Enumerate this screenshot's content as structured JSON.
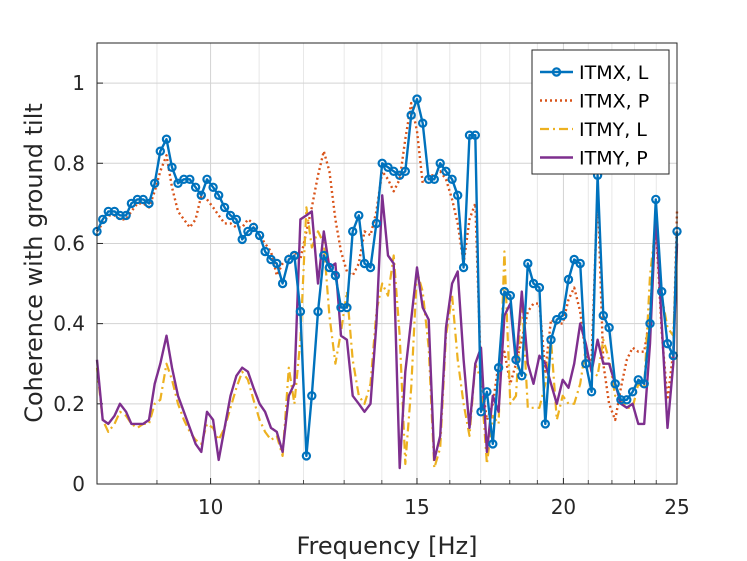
{
  "chart_data": {
    "type": "line",
    "xlabel": "Frequency [Hz]",
    "ylabel": "Coherence with ground tilt",
    "xlim": [
      8,
      25
    ],
    "ylim": [
      0,
      1.1
    ],
    "xscale": "log",
    "grid": true,
    "legend_position": "top-right",
    "xticks": [
      10,
      15,
      20,
      25
    ],
    "xtick_labels": [
      "10",
      "15",
      "20",
      "25"
    ],
    "yticks": [
      0,
      0.2,
      0.4,
      0.6,
      0.8,
      1.0
    ],
    "ytick_labels": [
      "0",
      "0.2",
      "0.4",
      "0.6",
      "0.8",
      "1"
    ],
    "series": [
      {
        "name": "ITMX, L",
        "color": "#0072BD",
        "style": "solid-circles",
        "x": [
          8.0,
          8.09,
          8.18,
          8.28,
          8.37,
          8.47,
          8.56,
          8.66,
          8.76,
          8.86,
          8.96,
          9.06,
          9.17,
          9.27,
          9.38,
          9.49,
          9.6,
          9.71,
          9.82,
          9.93,
          10.05,
          10.16,
          10.28,
          10.4,
          10.52,
          10.64,
          10.76,
          10.88,
          11.01,
          11.13,
          11.26,
          11.39,
          11.52,
          11.66,
          11.79,
          11.93,
          12.07,
          12.2,
          12.35,
          12.49,
          12.63,
          12.78,
          12.92,
          13.07,
          13.22,
          13.38,
          13.53,
          13.69,
          13.85,
          14.01,
          14.17,
          14.33,
          14.5,
          14.66,
          14.83,
          15.0,
          15.17,
          15.35,
          15.52,
          15.7,
          15.88,
          16.07,
          16.25,
          16.44,
          16.63,
          16.82,
          17.01,
          17.21,
          17.41,
          17.61,
          17.81,
          18.02,
          18.22,
          18.43,
          18.65,
          18.86,
          19.08,
          19.3,
          19.52,
          19.74,
          19.97,
          20.2,
          20.43,
          20.67,
          20.9,
          21.14,
          21.39,
          21.63,
          21.88,
          22.14,
          22.39,
          22.65,
          22.91,
          23.17,
          23.44,
          23.71,
          23.98,
          24.26,
          24.54,
          24.82,
          25.0
        ],
        "y": [
          0.63,
          0.66,
          0.68,
          0.68,
          0.67,
          0.67,
          0.7,
          0.71,
          0.71,
          0.7,
          0.75,
          0.83,
          0.86,
          0.79,
          0.75,
          0.76,
          0.76,
          0.74,
          0.72,
          0.76,
          0.74,
          0.72,
          0.69,
          0.67,
          0.66,
          0.61,
          0.63,
          0.64,
          0.62,
          0.58,
          0.56,
          0.55,
          0.5,
          0.56,
          0.57,
          0.43,
          0.07,
          0.22,
          0.43,
          0.57,
          0.54,
          0.52,
          0.44,
          0.44,
          0.63,
          0.67,
          0.55,
          0.54,
          0.65,
          0.8,
          0.79,
          0.78,
          0.77,
          0.78,
          0.92,
          0.96,
          0.9,
          0.76,
          0.76,
          0.8,
          0.78,
          0.76,
          0.72,
          0.54,
          0.87,
          0.87,
          0.18,
          0.23,
          0.1,
          0.29,
          0.48,
          0.47,
          0.31,
          0.27,
          0.55,
          0.5,
          0.49,
          0.15,
          0.36,
          0.41,
          0.42,
          0.51,
          0.56,
          0.55,
          0.3,
          0.23,
          0.77,
          0.42,
          0.39,
          0.25,
          0.21,
          0.21,
          0.23,
          0.26,
          0.25,
          0.4,
          0.71,
          0.48,
          0.35,
          0.32,
          0.63
        ]
      },
      {
        "name": "ITMX, P",
        "color": "#D95319",
        "style": "dotted",
        "x": [
          8.0,
          8.09,
          8.18,
          8.28,
          8.37,
          8.47,
          8.56,
          8.66,
          8.76,
          8.86,
          8.96,
          9.06,
          9.17,
          9.27,
          9.38,
          9.49,
          9.6,
          9.71,
          9.82,
          9.93,
          10.05,
          10.16,
          10.28,
          10.4,
          10.52,
          10.64,
          10.76,
          10.88,
          11.01,
          11.13,
          11.26,
          11.39,
          11.52,
          11.66,
          11.79,
          11.93,
          12.07,
          12.2,
          12.35,
          12.49,
          12.63,
          12.78,
          12.92,
          13.07,
          13.22,
          13.38,
          13.53,
          13.69,
          13.85,
          14.01,
          14.17,
          14.33,
          14.5,
          14.66,
          14.83,
          15.0,
          15.17,
          15.35,
          15.52,
          15.7,
          15.88,
          16.07,
          16.25,
          16.44,
          16.63,
          16.82,
          17.01,
          17.21,
          17.41,
          17.61,
          17.81,
          18.02,
          18.22,
          18.43,
          18.65,
          18.86,
          19.08,
          19.3,
          19.52,
          19.74,
          19.97,
          20.2,
          20.43,
          20.67,
          20.9,
          21.14,
          21.39,
          21.63,
          21.88,
          22.14,
          22.39,
          22.65,
          22.91,
          23.17,
          23.44,
          23.71,
          23.98,
          24.26,
          24.54,
          24.82,
          25.0
        ],
        "y": [
          0.63,
          0.65,
          0.67,
          0.67,
          0.66,
          0.66,
          0.68,
          0.7,
          0.7,
          0.69,
          0.73,
          0.78,
          0.82,
          0.74,
          0.68,
          0.66,
          0.64,
          0.66,
          0.72,
          0.71,
          0.69,
          0.67,
          0.65,
          0.65,
          0.64,
          0.64,
          0.66,
          0.65,
          0.62,
          0.6,
          0.58,
          0.52,
          0.55,
          0.57,
          0.58,
          0.56,
          0.63,
          0.69,
          0.77,
          0.83,
          0.78,
          0.66,
          0.58,
          0.53,
          0.52,
          0.55,
          0.63,
          0.62,
          0.68,
          0.78,
          0.76,
          0.73,
          0.76,
          0.86,
          0.95,
          0.88,
          0.75,
          0.77,
          0.77,
          0.78,
          0.76,
          0.71,
          0.65,
          0.55,
          0.66,
          0.7,
          0.27,
          0.16,
          0.2,
          0.3,
          0.33,
          0.25,
          0.3,
          0.36,
          0.43,
          0.45,
          0.45,
          0.28,
          0.41,
          0.4,
          0.4,
          0.46,
          0.49,
          0.43,
          0.32,
          0.31,
          0.73,
          0.3,
          0.2,
          0.16,
          0.24,
          0.31,
          0.34,
          0.33,
          0.33,
          0.42,
          0.65,
          0.38,
          0.21,
          0.33,
          0.68
        ]
      },
      {
        "name": "ITMY, L",
        "color": "#EDB120",
        "style": "dash-dot",
        "x": [
          8.0,
          8.09,
          8.18,
          8.28,
          8.37,
          8.47,
          8.56,
          8.66,
          8.76,
          8.86,
          8.96,
          9.06,
          9.17,
          9.27,
          9.38,
          9.49,
          9.6,
          9.71,
          9.82,
          9.93,
          10.05,
          10.16,
          10.28,
          10.4,
          10.52,
          10.64,
          10.76,
          10.88,
          11.01,
          11.13,
          11.26,
          11.39,
          11.52,
          11.66,
          11.79,
          11.93,
          12.07,
          12.2,
          12.35,
          12.49,
          12.63,
          12.78,
          12.92,
          13.07,
          13.22,
          13.38,
          13.53,
          13.69,
          13.85,
          14.01,
          14.17,
          14.33,
          14.5,
          14.66,
          14.83,
          15.0,
          15.17,
          15.35,
          15.52,
          15.7,
          15.88,
          16.07,
          16.25,
          16.44,
          16.63,
          16.82,
          17.01,
          17.21,
          17.41,
          17.61,
          17.81,
          18.02,
          18.22,
          18.43,
          18.65,
          18.86,
          19.08,
          19.3,
          19.52,
          19.74,
          19.97,
          20.2,
          20.43,
          20.67,
          20.9,
          21.14,
          21.39,
          21.63,
          21.88,
          22.14,
          22.39,
          22.65,
          22.91,
          23.17,
          23.44,
          23.71,
          23.98,
          24.26,
          24.54,
          24.82,
          25.0
        ],
        "y": [
          0.29,
          0.16,
          0.13,
          0.15,
          0.18,
          0.17,
          0.15,
          0.14,
          0.15,
          0.15,
          0.2,
          0.21,
          0.3,
          0.26,
          0.2,
          0.16,
          0.13,
          0.11,
          0.1,
          0.15,
          0.14,
          0.11,
          0.14,
          0.19,
          0.24,
          0.28,
          0.26,
          0.21,
          0.16,
          0.13,
          0.11,
          0.12,
          0.07,
          0.29,
          0.2,
          0.36,
          0.69,
          0.59,
          0.63,
          0.6,
          0.42,
          0.3,
          0.38,
          0.48,
          0.31,
          0.22,
          0.2,
          0.25,
          0.43,
          0.5,
          0.47,
          0.57,
          0.37,
          0.05,
          0.24,
          0.53,
          0.48,
          0.34,
          0.04,
          0.09,
          0.37,
          0.47,
          0.31,
          0.2,
          0.12,
          0.3,
          0.26,
          0.05,
          0.17,
          0.15,
          0.58,
          0.2,
          0.22,
          0.47,
          0.19,
          0.19,
          0.19,
          0.25,
          0.36,
          0.16,
          0.22,
          0.2,
          0.2,
          0.25,
          0.34,
          0.28,
          0.27,
          0.36,
          0.31,
          0.22,
          0.21,
          0.19,
          0.19,
          0.25,
          0.24,
          0.52,
          0.65,
          0.47,
          0.39,
          0.37,
          0.6
        ]
      },
      {
        "name": "ITMY, P",
        "color": "#7E2F8E",
        "style": "solid",
        "x": [
          8.0,
          8.09,
          8.18,
          8.28,
          8.37,
          8.47,
          8.56,
          8.66,
          8.76,
          8.86,
          8.96,
          9.06,
          9.17,
          9.27,
          9.38,
          9.49,
          9.6,
          9.71,
          9.82,
          9.93,
          10.05,
          10.16,
          10.28,
          10.4,
          10.52,
          10.64,
          10.76,
          10.88,
          11.01,
          11.13,
          11.26,
          11.39,
          11.52,
          11.66,
          11.79,
          11.93,
          12.07,
          12.2,
          12.35,
          12.49,
          12.63,
          12.78,
          12.92,
          13.07,
          13.22,
          13.38,
          13.53,
          13.69,
          13.85,
          14.01,
          14.17,
          14.33,
          14.5,
          14.66,
          14.83,
          15.0,
          15.17,
          15.35,
          15.52,
          15.7,
          15.88,
          16.07,
          16.25,
          16.44,
          16.63,
          16.82,
          17.01,
          17.21,
          17.41,
          17.61,
          17.81,
          18.02,
          18.22,
          18.43,
          18.65,
          18.86,
          19.08,
          19.3,
          19.52,
          19.74,
          19.97,
          20.2,
          20.43,
          20.67,
          20.9,
          21.14,
          21.39,
          21.63,
          21.88,
          22.14,
          22.39,
          22.65,
          22.91,
          23.17,
          23.44,
          23.71,
          23.98,
          24.26,
          24.54,
          24.82,
          25.0
        ],
        "y": [
          0.31,
          0.16,
          0.15,
          0.17,
          0.2,
          0.18,
          0.15,
          0.15,
          0.15,
          0.16,
          0.25,
          0.3,
          0.37,
          0.29,
          0.22,
          0.18,
          0.14,
          0.1,
          0.08,
          0.18,
          0.16,
          0.06,
          0.14,
          0.22,
          0.27,
          0.29,
          0.28,
          0.24,
          0.2,
          0.18,
          0.14,
          0.13,
          0.08,
          0.22,
          0.25,
          0.66,
          0.67,
          0.68,
          0.5,
          0.63,
          0.54,
          0.55,
          0.37,
          0.36,
          0.22,
          0.2,
          0.18,
          0.2,
          0.4,
          0.72,
          0.57,
          0.55,
          0.04,
          0.28,
          0.41,
          0.54,
          0.44,
          0.41,
          0.06,
          0.12,
          0.39,
          0.5,
          0.53,
          0.31,
          0.14,
          0.3,
          0.34,
          0.08,
          0.22,
          0.18,
          0.42,
          0.45,
          0.3,
          0.48,
          0.3,
          0.25,
          0.32,
          0.3,
          0.25,
          0.2,
          0.26,
          0.24,
          0.3,
          0.4,
          0.35,
          0.28,
          0.36,
          0.3,
          0.3,
          0.25,
          0.2,
          0.19,
          0.2,
          0.15,
          0.15,
          0.35,
          0.68,
          0.4,
          0.14,
          0.3,
          0.6
        ]
      }
    ]
  }
}
